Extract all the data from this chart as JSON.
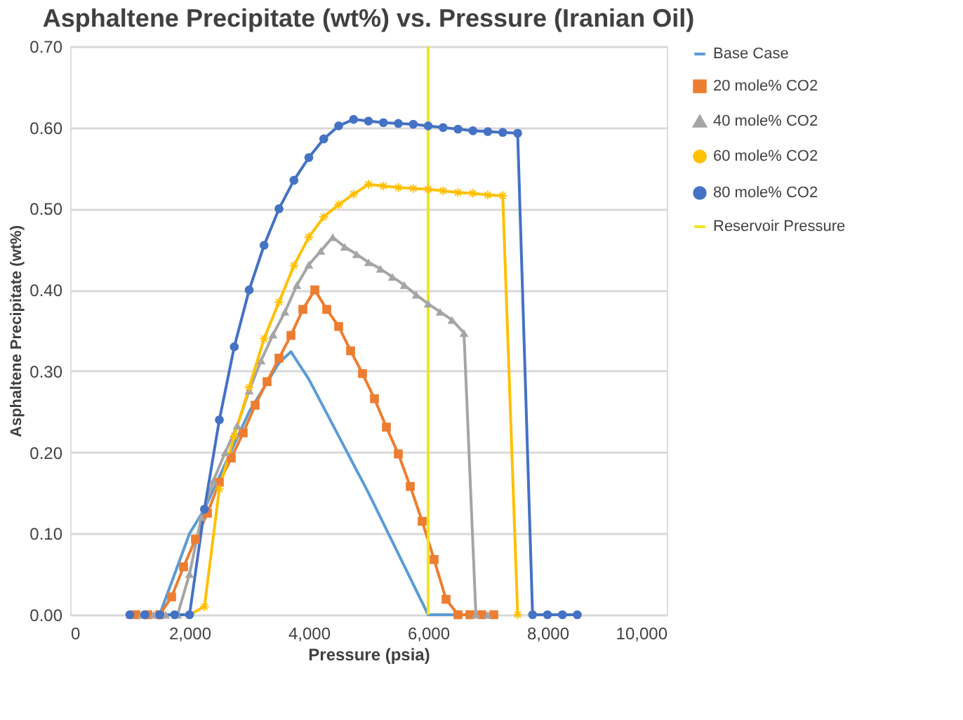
{
  "chart_data": {
    "type": "line",
    "title": "Asphaltene Precipitate (wt%) vs. Pressure (Iranian Oil)",
    "xlabel": "Pressure (psia)",
    "ylabel": "Asphaltene Precipitate (wt%)",
    "xlim": [
      0,
      10000
    ],
    "xticks": [
      0,
      {
        "value": 2000,
        "label": "2,000"
      },
      {
        "value": 4000,
        "label": "4,000"
      },
      {
        "value": 6000,
        "label": "6,000"
      },
      {
        "value": 8000,
        "label": "8,000"
      },
      {
        "value": 10000,
        "label": "10,000"
      }
    ],
    "ylim": [
      0,
      0.7
    ],
    "yticks": [
      {
        "value": 0,
        "label": "0.00"
      },
      {
        "value": 0.1,
        "label": "0.10"
      },
      {
        "value": 0.2,
        "label": "0.20"
      },
      {
        "value": 0.3,
        "label": "0.30"
      },
      {
        "value": 0.4,
        "label": "0.40"
      },
      {
        "value": 0.5,
        "label": "0.50"
      },
      {
        "value": 0.6,
        "label": "0.60"
      },
      {
        "value": 0.7,
        "label": "0.70"
      }
    ],
    "grid": "y",
    "legend": "right",
    "line_style": "solid",
    "series": [
      {
        "name": "Base Case",
        "color": "#5b9bd5",
        "marker": "none",
        "x": [
          1000,
          1500,
          2000,
          2250,
          2500,
          3000,
          3500,
          3700,
          4000,
          4500,
          5000,
          5500,
          6000,
          6500
        ],
        "values": [
          0,
          0,
          0.1,
          0.13,
          0.17,
          0.25,
          0.31,
          0.324,
          0.29,
          0.22,
          0.15,
          0.075,
          0,
          0
        ]
      },
      {
        "name": "20 mole% CO2",
        "color": "#ed7d31",
        "marker": "square",
        "x": [
          1100,
          1300,
          1500,
          1700,
          1900,
          2100,
          2300,
          2500,
          2700,
          2900,
          3100,
          3300,
          3500,
          3700,
          3900,
          4100,
          4300,
          4500,
          4700,
          4900,
          5100,
          5300,
          5500,
          5700,
          5900,
          6100,
          6300,
          6500,
          6700,
          6900,
          7100
        ],
        "values": [
          0,
          0,
          0,
          0.022,
          0.059,
          0.093,
          0.125,
          0.163,
          0.193,
          0.224,
          0.258,
          0.287,
          0.316,
          0.344,
          0.376,
          0.4,
          0.376,
          0.355,
          0.325,
          0.297,
          0.266,
          0.231,
          0.198,
          0.158,
          0.115,
          0.068,
          0.019,
          0,
          0,
          0,
          0
        ]
      },
      {
        "name": "40 mole% CO2",
        "color": "#a5a5a5",
        "marker": "triangle",
        "x": [
          1000,
          1200,
          1400,
          1600,
          1800,
          2000,
          2200,
          2400,
          2600,
          2800,
          3000,
          3200,
          3400,
          3600,
          3800,
          4000,
          4200,
          4400,
          4600,
          4800,
          5000,
          5200,
          5400,
          5600,
          5800,
          6000,
          6200,
          6400,
          6600,
          6800,
          7000
        ],
        "values": [
          0,
          0,
          0,
          0,
          0,
          0.05,
          0.12,
          0.165,
          0.2,
          0.233,
          0.276,
          0.313,
          0.345,
          0.373,
          0.406,
          0.431,
          0.448,
          0.465,
          0.453,
          0.444,
          0.434,
          0.426,
          0.416,
          0.406,
          0.394,
          0.383,
          0.373,
          0.363,
          0.347,
          0,
          0
        ]
      },
      {
        "name": "60 mole% CO2",
        "color": "#ffc000",
        "marker": "star",
        "x": [
          1000,
          1500,
          2000,
          2250,
          2500,
          2750,
          3000,
          3250,
          3500,
          3750,
          4000,
          4250,
          4500,
          4750,
          5000,
          5250,
          5500,
          5750,
          6000,
          6250,
          6500,
          6750,
          7000,
          7250,
          7500
        ],
        "values": [
          0,
          0,
          0,
          0.01,
          0.155,
          0.22,
          0.28,
          0.34,
          0.385,
          0.43,
          0.465,
          0.49,
          0.505,
          0.518,
          0.53,
          0.528,
          0.526,
          0.525,
          0.524,
          0.522,
          0.52,
          0.519,
          0.517,
          0.516,
          0
        ]
      },
      {
        "name": "80 mole% CO2",
        "color": "#4472c4",
        "marker": "circle",
        "x": [
          1000,
          1250,
          1500,
          1750,
          2000,
          2250,
          2500,
          2750,
          3000,
          3250,
          3500,
          3750,
          4000,
          4250,
          4500,
          4750,
          5000,
          5250,
          5500,
          5750,
          6000,
          6250,
          6500,
          6750,
          7000,
          7250,
          7500,
          7750,
          8000,
          8250,
          8500
        ],
        "values": [
          0,
          0,
          0,
          0,
          0,
          0.13,
          0.24,
          0.33,
          0.4,
          0.455,
          0.5,
          0.535,
          0.563,
          0.586,
          0.602,
          0.61,
          0.608,
          0.606,
          0.605,
          0.604,
          0.602,
          0.6,
          0.598,
          0.596,
          0.595,
          0.594,
          0.593,
          0,
          0,
          0,
          0
        ]
      },
      {
        "name": "Reservoir Pressure",
        "color": "#f2e41c",
        "marker": "none",
        "x": [
          6000,
          6000
        ],
        "values": [
          0,
          0.7
        ]
      }
    ]
  }
}
